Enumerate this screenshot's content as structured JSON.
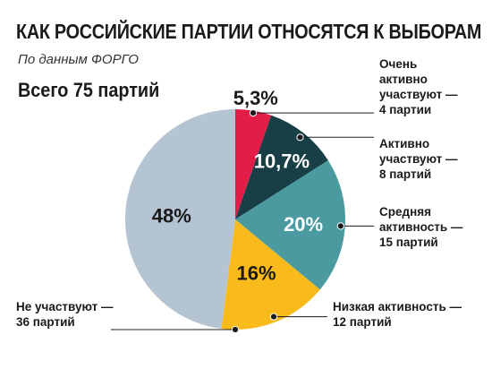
{
  "header": {
    "title": "КАК РОССИЙСКИЕ ПАРТИИ ОТНОСЯТСЯ К ВЫБОРАМ",
    "source": "По данным ФОРГО",
    "total": "Всего 75 партий"
  },
  "chart_data": {
    "type": "pie",
    "title": "КАК РОССИЙСКИЕ ПАРТИИ ОТНОСЯТСЯ К ВЫБОРАМ",
    "slices": [
      {
        "label": "Очень активно участвуют — 4 партии",
        "lines": [
          "Очень",
          "активно",
          "участвуют —",
          "4 партии"
        ],
        "value": 5.3,
        "value_label": "5,3%",
        "count": 4,
        "color": "#e11d48",
        "text_color": "#1a1a1a"
      },
      {
        "label": "Активно участвуют — 8 партий",
        "lines": [
          "Активно",
          "участвуют —",
          "8 партий"
        ],
        "value": 10.7,
        "value_label": "10,7%",
        "count": 8,
        "color": "#173f45",
        "text_color": "#ffffff"
      },
      {
        "label": "Средняя активность — 15 партий",
        "lines": [
          "Средняя",
          "активность —",
          "15 партий"
        ],
        "value": 20,
        "value_label": "20%",
        "count": 15,
        "color": "#4a9aa0",
        "text_color": "#ffffff"
      },
      {
        "label": "Низкая активность — 12 партий",
        "lines": [
          "Низкая активность —",
          "12 партий"
        ],
        "value": 16,
        "value_label": "16%",
        "count": 12,
        "color": "#f9bb1c",
        "text_color": "#1a1a1a"
      },
      {
        "label": "Не участвуют — 36 партий",
        "lines": [
          "Не участвуют —",
          "36 партий"
        ],
        "value": 48,
        "value_label": "48%",
        "count": 36,
        "color": "#b5c4d2",
        "text_color": "#1a1a1a"
      }
    ]
  }
}
